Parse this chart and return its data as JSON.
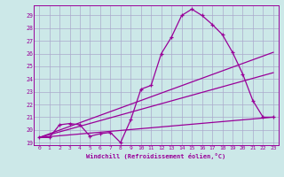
{
  "xlabel": "Windchill (Refroidissement éolien,°C)",
  "bg_color": "#cce8e8",
  "line_color": "#990099",
  "grid_color": "#aaaacc",
  "xlim": [
    -0.5,
    23.5
  ],
  "ylim": [
    18.8,
    29.8
  ],
  "yticks": [
    19,
    20,
    21,
    22,
    23,
    24,
    25,
    26,
    27,
    28,
    29
  ],
  "xticks": [
    0,
    1,
    2,
    3,
    4,
    5,
    6,
    7,
    8,
    9,
    10,
    11,
    12,
    13,
    14,
    15,
    16,
    17,
    18,
    19,
    20,
    21,
    22,
    23
  ],
  "series1_x": [
    0,
    1,
    2,
    3,
    4,
    5,
    6,
    7,
    8,
    9,
    10,
    11,
    12,
    13,
    14,
    15,
    16,
    17,
    18,
    19,
    20,
    21,
    22,
    23
  ],
  "series1_y": [
    19.4,
    19.4,
    20.4,
    20.5,
    20.4,
    19.5,
    19.7,
    19.8,
    19.0,
    20.8,
    23.2,
    23.5,
    26.0,
    27.3,
    29.0,
    29.5,
    29.0,
    28.3,
    27.5,
    26.1,
    24.4,
    22.3,
    21.0,
    21.0
  ],
  "line2_x": [
    0,
    23
  ],
  "line2_y": [
    19.4,
    21.0
  ],
  "line3_x": [
    0,
    23
  ],
  "line3_y": [
    19.4,
    24.5
  ],
  "line4_x": [
    0,
    23
  ],
  "line4_y": [
    19.4,
    26.1
  ]
}
